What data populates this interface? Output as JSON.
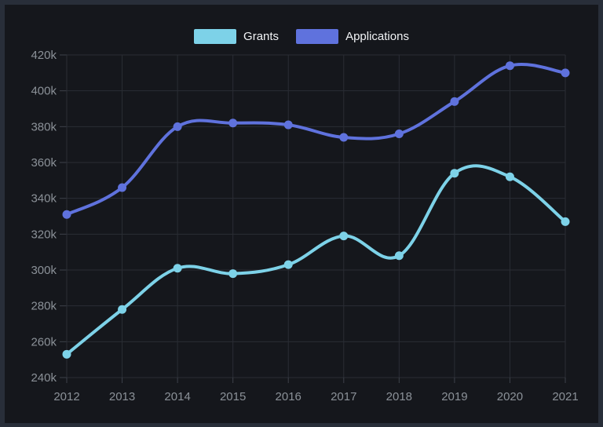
{
  "window": {
    "frame_color": "#282e39",
    "panel_color": "#15171c",
    "grid_color": "#2a2d34",
    "tick_color": "#3d414a",
    "label_color": "#8b9198"
  },
  "legend": {
    "items": [
      {
        "id": "grants",
        "label": "Grants",
        "color": "#7dd2e8"
      },
      {
        "id": "applications",
        "label": "Applications",
        "color": "#5f72dd"
      }
    ]
  },
  "chart_data": {
    "type": "line",
    "title": "",
    "xlabel": "",
    "ylabel": "",
    "x": [
      "2012",
      "2013",
      "2014",
      "2015",
      "2016",
      "2017",
      "2018",
      "2019",
      "2020",
      "2021"
    ],
    "series": [
      {
        "name": "Grants",
        "color": "#7dd2e8",
        "values": [
          253000,
          278000,
          301000,
          298000,
          303000,
          319000,
          308000,
          354000,
          352000,
          327000
        ]
      },
      {
        "name": "Applications",
        "color": "#5f72dd",
        "values": [
          331000,
          346000,
          380000,
          382000,
          381000,
          374000,
          376000,
          394000,
          414000,
          410000
        ]
      }
    ],
    "ylim": [
      240000,
      420000
    ],
    "ytick_step": 20000,
    "y_tick_labels": [
      "240k",
      "260k",
      "280k",
      "300k",
      "320k",
      "340k",
      "360k",
      "380k",
      "400k",
      "420k"
    ],
    "grid": true,
    "curve": "smooth",
    "legend_position": "top"
  }
}
